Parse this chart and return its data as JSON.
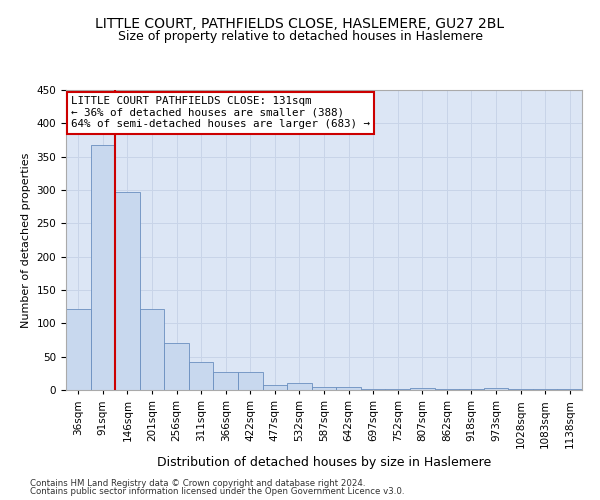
{
  "title": "LITTLE COURT, PATHFIELDS CLOSE, HASLEMERE, GU27 2BL",
  "subtitle": "Size of property relative to detached houses in Haslemere",
  "xlabel": "Distribution of detached houses by size in Haslemere",
  "ylabel": "Number of detached properties",
  "footnote1": "Contains HM Land Registry data © Crown copyright and database right 2024.",
  "footnote2": "Contains public sector information licensed under the Open Government Licence v3.0.",
  "bar_values": [
    122,
    368,
    297,
    122,
    71,
    42,
    27,
    27,
    8,
    10,
    5,
    5,
    2,
    1,
    3,
    1,
    1,
    3,
    1,
    1,
    2
  ],
  "bin_labels": [
    "36sqm",
    "91sqm",
    "146sqm",
    "201sqm",
    "256sqm",
    "311sqm",
    "366sqm",
    "422sqm",
    "477sqm",
    "532sqm",
    "587sqm",
    "642sqm",
    "697sqm",
    "752sqm",
    "807sqm",
    "862sqm",
    "918sqm",
    "973sqm",
    "1028sqm",
    "1083sqm",
    "1138sqm"
  ],
  "bar_color": "#c8d8ee",
  "bar_edge_color": "#6a8fbf",
  "grid_color": "#c8d4e8",
  "background_color": "#dce6f5",
  "red_line_color": "#cc0000",
  "annotation_line1": "LITTLE COURT PATHFIELDS CLOSE: 131sqm",
  "annotation_line2": "← 36% of detached houses are smaller (388)",
  "annotation_line3": "64% of semi-detached houses are larger (683) →",
  "annotation_box_color": "white",
  "annotation_box_edge": "#cc0000",
  "ylim": [
    0,
    450
  ],
  "yticks": [
    0,
    50,
    100,
    150,
    200,
    250,
    300,
    350,
    400,
    450
  ],
  "red_line_x": 1.5,
  "title_fontsize": 10,
  "subtitle_fontsize": 9,
  "ylabel_fontsize": 8,
  "xlabel_fontsize": 9,
  "tick_fontsize": 7.5
}
